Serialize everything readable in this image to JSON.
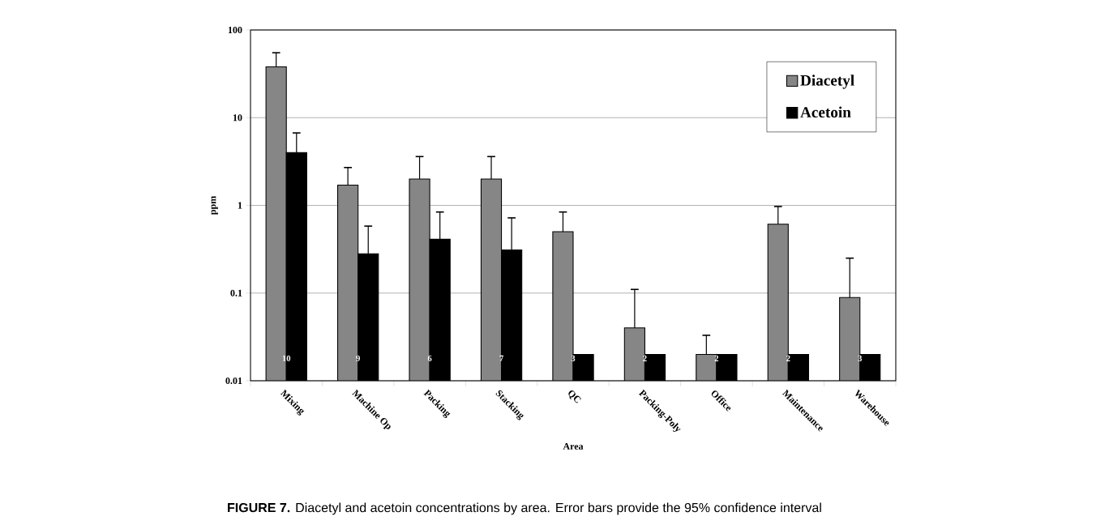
{
  "chart_data": {
    "type": "bar",
    "xlabel": "Area",
    "ylabel": "ppm",
    "categories": [
      "Mixing",
      "Machine Op",
      "Packing",
      "Stacking",
      "QC",
      "Packing-Poly",
      "Office",
      "Maintenance",
      "Warehouse"
    ],
    "series": [
      {
        "name": "Diacetyl",
        "color": "#868686",
        "values": [
          38,
          1.7,
          2.0,
          2.0,
          0.5,
          0.04,
          0.02,
          0.61,
          0.089
        ],
        "errors": [
          [
            38,
            55
          ],
          [
            1.7,
            2.7
          ],
          [
            2.0,
            3.6
          ],
          [
            2.0,
            3.6
          ],
          [
            0.5,
            0.84
          ],
          [
            0.04,
            0.11
          ],
          [
            0.02,
            0.033
          ],
          [
            0.61,
            0.97
          ],
          [
            0.089,
            0.25
          ]
        ]
      },
      {
        "name": "Acetoin",
        "color": "#000000",
        "values": [
          4.0,
          0.28,
          0.41,
          0.31,
          0.02,
          0.02,
          0.02,
          0.02,
          0.02
        ],
        "errors": [
          [
            4.0,
            6.7
          ],
          [
            0.28,
            0.58
          ],
          [
            0.41,
            0.84
          ],
          [
            0.31,
            0.72
          ],
          null,
          null,
          null,
          null,
          null
        ]
      }
    ],
    "ylim": [
      0.01,
      100
    ],
    "yticks": [
      0.01,
      0.1,
      1,
      10,
      100
    ],
    "log": "y",
    "grid": "y",
    "legend": "top right",
    "annotations": [
      {
        "text": "10",
        "x": "Mixing",
        "y": 0.018
      },
      {
        "text": "9",
        "x": "Machine Op",
        "y": 0.018
      },
      {
        "text": "6",
        "x": "Packing",
        "y": 0.018
      },
      {
        "text": "7",
        "x": "Stacking",
        "y": 0.018
      },
      {
        "text": "3",
        "x": "QC",
        "y": 0.018
      },
      {
        "text": "2",
        "x": "Packing-Poly",
        "y": 0.018
      },
      {
        "text": "2",
        "x": "Office",
        "y": 0.018
      },
      {
        "text": "2",
        "x": "Maintenance",
        "y": 0.018
      },
      {
        "text": "3",
        "x": "Warehouse",
        "y": 0.018
      },
      "**FIGURE 7.**   Diacetyl and acetoin concentrations by area. Error bars provide the 95% confidence interval"
    ]
  }
}
